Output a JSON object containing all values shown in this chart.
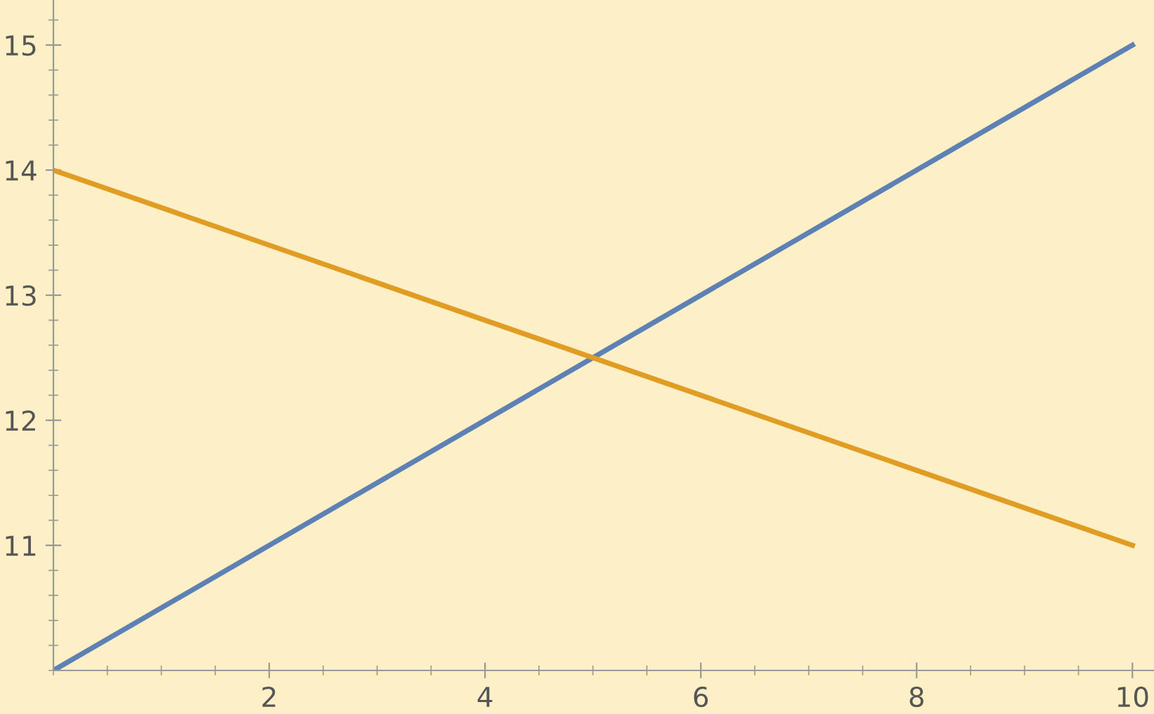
{
  "chart_data": {
    "type": "line",
    "x": [
      0,
      10
    ],
    "series": [
      {
        "color": "#5e81b5",
        "values": [
          10,
          15
        ]
      },
      {
        "color": "#e19c24",
        "values": [
          14,
          11
        ]
      }
    ],
    "xlim": [
      0,
      10.2
    ],
    "ylim": [
      10,
      15.36
    ],
    "xticks": [
      2,
      4,
      6,
      8,
      10
    ],
    "yticks": [
      11,
      12,
      13,
      14,
      15
    ],
    "grid": false,
    "line_style": "solid"
  }
}
